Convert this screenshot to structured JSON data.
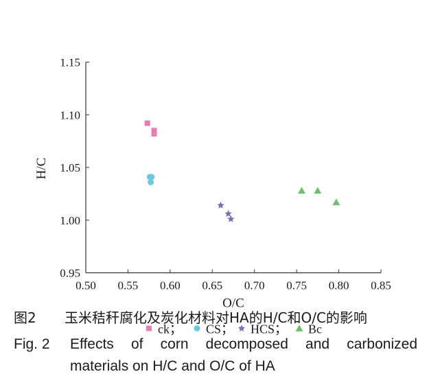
{
  "chart_data": {
    "type": "scatter",
    "xlabel": "O/C",
    "ylabel": "H/C",
    "xlim": [
      0.5,
      0.85
    ],
    "ylim": [
      0.95,
      1.15
    ],
    "x_ticks": [
      "0.50",
      "0.55",
      "0.60",
      "0.65",
      "0.70",
      "0.75",
      "0.80",
      "0.85"
    ],
    "y_ticks": [
      "0.95",
      "1.00",
      "1.05",
      "1.10",
      "1.15"
    ],
    "x_tick_values": [
      0.5,
      0.55,
      0.6,
      0.65,
      0.7,
      0.75,
      0.8,
      0.85
    ],
    "y_tick_values": [
      0.95,
      1.0,
      1.05,
      1.1,
      1.15
    ],
    "series": [
      {
        "name": "ck",
        "legend_label": "ck；",
        "marker": "square",
        "color": "#e87db6",
        "points": [
          [
            0.573,
            1.092
          ],
          [
            0.581,
            1.085
          ],
          [
            0.581,
            1.082
          ]
        ]
      },
      {
        "name": "CS",
        "legend_label": "CS；",
        "marker": "circle",
        "color": "#6cc8dc",
        "points": [
          [
            0.576,
            1.041
          ],
          [
            0.578,
            1.041
          ],
          [
            0.577,
            1.036
          ]
        ]
      },
      {
        "name": "HCS",
        "legend_label": "HCS；",
        "marker": "star",
        "color": "#7e6bb6",
        "points": [
          [
            0.66,
            1.014
          ],
          [
            0.669,
            1.006
          ],
          [
            0.672,
            1.001
          ]
        ]
      },
      {
        "name": "Bc",
        "legend_label": "Bc",
        "marker": "triangle",
        "color": "#6cc06c",
        "points": [
          [
            0.756,
            1.028
          ],
          [
            0.775,
            1.028
          ],
          [
            0.797,
            1.017
          ]
        ]
      }
    ]
  },
  "caption": {
    "cn_label": "图2",
    "cn_text": "玉米秸秆腐化及炭化材料对HA的H/C和O/C的影响",
    "en_label": "Fig. 2",
    "en_line1": "Effects of corn decomposed and carbonized",
    "en_line2": "materials on H/C and O/C of HA"
  }
}
